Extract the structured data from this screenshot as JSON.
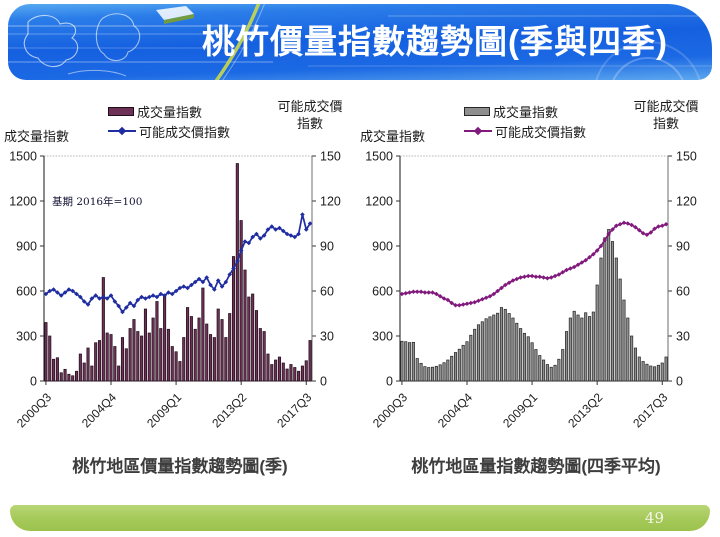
{
  "slide": {
    "title": "桃竹價量指數趨勢圖(季與四季)",
    "page_number": "49",
    "colors": {
      "header_blue": "#1560e0",
      "footer_green": "#a5c958",
      "left_bar": "#6d3156",
      "left_line": "#1f2da0",
      "right_bar": "#8f8f8f",
      "right_line": "#811a7c"
    }
  },
  "chart_data": [
    {
      "type": "combo-bar-line",
      "title": "桃竹地區價量指數趨勢圖(季)",
      "left_axis_title": "成交量指數",
      "right_axis_title_line1": "可能成交價",
      "right_axis_title_line2": "指數",
      "annotation": "基期 2016年=100",
      "x_start": "2000Q3",
      "x_end": "2017Q4",
      "x_tick_labels": [
        "2000Q3",
        "2004Q4",
        "2009Q1",
        "2013Q2",
        "2017Q3"
      ],
      "x_tick_positions": [
        0,
        17,
        34,
        51,
        68
      ],
      "left_ylim": [
        0,
        1500
      ],
      "left_yticks": [
        0,
        300,
        600,
        900,
        1200,
        1500
      ],
      "right_ylim": [
        0,
        150
      ],
      "right_yticks": [
        0,
        30,
        60,
        90,
        120,
        150
      ],
      "grid": false,
      "legend_position": "top-center",
      "series": [
        {
          "name": "成交量指數",
          "type": "bar",
          "axis": "left",
          "color": "#6d3156",
          "border": "#200d19",
          "values": [
            390,
            300,
            145,
            155,
            55,
            78,
            45,
            35,
            65,
            180,
            120,
            220,
            100,
            255,
            270,
            690,
            320,
            310,
            230,
            100,
            290,
            215,
            350,
            410,
            330,
            300,
            480,
            320,
            420,
            530,
            350,
            575,
            345,
            230,
            195,
            130,
            290,
            490,
            430,
            345,
            420,
            620,
            380,
            310,
            290,
            480,
            410,
            290,
            450,
            830,
            1450,
            1070,
            740,
            560,
            580,
            470,
            350,
            330,
            180,
            110,
            140,
            160,
            120,
            80,
            110,
            90,
            65,
            100,
            135,
            270
          ]
        },
        {
          "name": "可能成交價指數",
          "type": "line",
          "axis": "right",
          "marker": "diamond",
          "color": "#1f2da0",
          "values": [
            58,
            60,
            61,
            59,
            57,
            59,
            61,
            60,
            58,
            56,
            53,
            51,
            55,
            57,
            55,
            56,
            55,
            57,
            53,
            50,
            46,
            49,
            52,
            50,
            54,
            56,
            55,
            56,
            57,
            56,
            58,
            57,
            59,
            58,
            60,
            62,
            63,
            62,
            64,
            66,
            68,
            66,
            69,
            64,
            61,
            67,
            63,
            66,
            71,
            75,
            80,
            87,
            93,
            92,
            96,
            98,
            95,
            97,
            101,
            103,
            101,
            102,
            100,
            98,
            97,
            96,
            98,
            111,
            101,
            105
          ]
        }
      ]
    },
    {
      "type": "combo-bar-line",
      "title": "桃竹地區量指數趨勢圖(四季平均)",
      "left_axis_title": "成交量指數",
      "right_axis_title_line1": "可能成交價",
      "right_axis_title_line2": "指數",
      "annotation": "",
      "x_start": "2000Q3",
      "x_end": "2017Q4",
      "x_tick_labels": [
        "2000Q3",
        "2004Q4",
        "2009Q1",
        "2013Q2",
        "2017Q3"
      ],
      "x_tick_positions": [
        0,
        17,
        34,
        51,
        68
      ],
      "left_ylim": [
        0,
        1500
      ],
      "left_yticks": [
        0,
        300,
        600,
        900,
        1200,
        1500
      ],
      "right_ylim": [
        0,
        150
      ],
      "right_yticks": [
        0,
        30,
        60,
        90,
        120,
        150
      ],
      "grid": false,
      "legend_position": "top-center",
      "series": [
        {
          "name": "成交量指數",
          "type": "bar",
          "axis": "left",
          "color": "#8f8f8f",
          "border": "#262626",
          "values": [
            265,
            262,
            256,
            258,
            150,
            118,
            96,
            90,
            92,
            98,
            108,
            122,
            140,
            165,
            190,
            212,
            238,
            262,
            305,
            345,
            375,
            395,
            415,
            428,
            440,
            452,
            490,
            478,
            450,
            420,
            385,
            350,
            318,
            295,
            255,
            210,
            170,
            140,
            110,
            92,
            105,
            145,
            210,
            330,
            420,
            465,
            440,
            420,
            455,
            430,
            460,
            640,
            820,
            955,
            1010,
            930,
            820,
            680,
            540,
            420,
            300,
            220,
            160,
            130,
            112,
            100,
            95,
            105,
            120,
            160
          ]
        },
        {
          "name": "可能成交價指數",
          "type": "line",
          "axis": "right",
          "marker": "diamond",
          "color": "#811a7c",
          "values": [
            58,
            58.5,
            59,
            59.5,
            59.5,
            59.5,
            59,
            59,
            59,
            58,
            56.5,
            55,
            54,
            52,
            50.5,
            50.5,
            51,
            51.5,
            52,
            52.5,
            53.5,
            54.5,
            55.5,
            56.5,
            58,
            60,
            62,
            64,
            65.5,
            67,
            68,
            69,
            69.5,
            70,
            70,
            69.5,
            69.5,
            69,
            68.5,
            69,
            70,
            71,
            72.5,
            74,
            75,
            76,
            77.5,
            79,
            80.5,
            82.5,
            84.5,
            87,
            90,
            94,
            98,
            101,
            103.5,
            104.5,
            105.5,
            105,
            104,
            102.5,
            100.5,
            98.5,
            97.5,
            99,
            101.5,
            103,
            103.5,
            104.5
          ]
        }
      ]
    }
  ]
}
